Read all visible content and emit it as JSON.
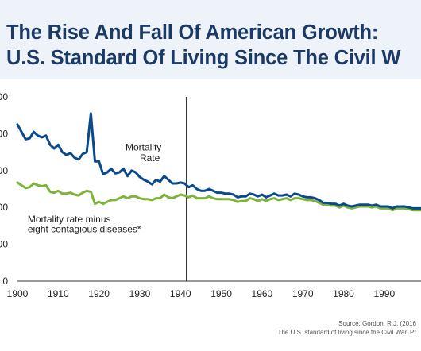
{
  "header": {
    "title_line1": "The Rise And Fall Of American Growth:",
    "title_line2": "U.S. Standard Of Living Since The Civil W"
  },
  "colors": {
    "header_bg": "#eef3fa",
    "title": "#1b3a66",
    "series_mortality": "#0a4a8c",
    "series_adjusted": "#7db33a",
    "marker_line": "#111111"
  },
  "source": {
    "line1": "Source: Gordon, R.J. (2016",
    "line2": "The U.S. standard of living since the Civil War. Pr"
  },
  "chart_data": {
    "type": "line",
    "xlim": [
      1900,
      1999
    ],
    "ylim": [
      0,
      100
    ],
    "x_ticks": [
      1900,
      1910,
      1920,
      1930,
      1940,
      1950,
      1960,
      1970,
      1980,
      1990
    ],
    "y_tick_labels": [
      "0",
      "00",
      "00",
      "00",
      "00",
      "00"
    ],
    "grid": false,
    "vertical_marker_x": 1941.5,
    "annotations": [
      {
        "text": "Mortality",
        "x": 1926.5,
        "y": 71
      },
      {
        "text": "Rate",
        "x": 1930,
        "y": 65
      },
      {
        "text": "Mortality rate minus",
        "x": 1902.5,
        "y": 32
      },
      {
        "text": "eight contagious diseases*",
        "x": 1902.5,
        "y": 26.5
      }
    ],
    "series": [
      {
        "key": "mortality",
        "color": "#0a4a8c",
        "points": [
          [
            1900,
            85
          ],
          [
            1901,
            81
          ],
          [
            1902,
            77
          ],
          [
            1903,
            77.5
          ],
          [
            1904,
            81
          ],
          [
            1905,
            79
          ],
          [
            1906,
            78
          ],
          [
            1907,
            79
          ],
          [
            1908,
            74
          ],
          [
            1909,
            72
          ],
          [
            1910,
            74
          ],
          [
            1911,
            70
          ],
          [
            1912,
            68.5
          ],
          [
            1913,
            69.5
          ],
          [
            1914,
            67
          ],
          [
            1915,
            66
          ],
          [
            1916,
            69
          ],
          [
            1917,
            70
          ],
          [
            1918,
            91
          ],
          [
            1919,
            65
          ],
          [
            1920,
            65
          ],
          [
            1921,
            58
          ],
          [
            1922,
            59
          ],
          [
            1923,
            61
          ],
          [
            1924,
            58.5
          ],
          [
            1925,
            59
          ],
          [
            1926,
            61
          ],
          [
            1927,
            57
          ],
          [
            1928,
            60
          ],
          [
            1929,
            59
          ],
          [
            1930,
            56.5
          ],
          [
            1931,
            55
          ],
          [
            1932,
            54
          ],
          [
            1933,
            52.5
          ],
          [
            1934,
            55
          ],
          [
            1935,
            54
          ],
          [
            1936,
            57
          ],
          [
            1937,
            55
          ],
          [
            1938,
            53
          ],
          [
            1939,
            53
          ],
          [
            1940,
            53.5
          ],
          [
            1941,
            53
          ],
          [
            1942,
            51
          ],
          [
            1943,
            52
          ],
          [
            1944,
            50
          ],
          [
            1945,
            49
          ],
          [
            1946,
            49
          ],
          [
            1947,
            50
          ],
          [
            1948,
            49
          ],
          [
            1949,
            48
          ],
          [
            1950,
            48
          ],
          [
            1951,
            47.5
          ],
          [
            1952,
            47.5
          ],
          [
            1953,
            47
          ],
          [
            1954,
            45.5
          ],
          [
            1955,
            46
          ],
          [
            1956,
            46
          ],
          [
            1957,
            47.5
          ],
          [
            1958,
            47
          ],
          [
            1959,
            46
          ],
          [
            1960,
            47
          ],
          [
            1961,
            45.5
          ],
          [
            1962,
            46.5
          ],
          [
            1963,
            47.5
          ],
          [
            1964,
            46.5
          ],
          [
            1965,
            46.5
          ],
          [
            1966,
            47
          ],
          [
            1967,
            46
          ],
          [
            1968,
            47.5
          ],
          [
            1969,
            47
          ],
          [
            1970,
            46
          ],
          [
            1971,
            45.5
          ],
          [
            1972,
            45.5
          ],
          [
            1973,
            45
          ],
          [
            1974,
            44
          ],
          [
            1975,
            42.5
          ],
          [
            1976,
            42.5
          ],
          [
            1977,
            42
          ],
          [
            1978,
            42
          ],
          [
            1979,
            41
          ],
          [
            1980,
            42
          ],
          [
            1981,
            41
          ],
          [
            1982,
            40.5
          ],
          [
            1983,
            41
          ],
          [
            1984,
            41.5
          ],
          [
            1985,
            41.5
          ],
          [
            1986,
            41.5
          ],
          [
            1987,
            41
          ],
          [
            1988,
            41.5
          ],
          [
            1989,
            40.5
          ],
          [
            1990,
            40.5
          ],
          [
            1991,
            40.5
          ],
          [
            1992,
            39.5
          ],
          [
            1993,
            40.5
          ],
          [
            1994,
            40.5
          ],
          [
            1995,
            40.5
          ],
          [
            1996,
            40
          ],
          [
            1997,
            39.5
          ],
          [
            1998,
            39.5
          ],
          [
            1999,
            39.5
          ]
        ]
      },
      {
        "key": "adjusted",
        "color": "#7db33a",
        "points": [
          [
            1900,
            53.5
          ],
          [
            1901,
            52
          ],
          [
            1902,
            50.5
          ],
          [
            1903,
            51
          ],
          [
            1904,
            53
          ],
          [
            1905,
            52
          ],
          [
            1906,
            51.5
          ],
          [
            1907,
            52
          ],
          [
            1908,
            48.5
          ],
          [
            1909,
            48
          ],
          [
            1910,
            49
          ],
          [
            1911,
            47.5
          ],
          [
            1912,
            47.5
          ],
          [
            1913,
            48
          ],
          [
            1914,
            47
          ],
          [
            1915,
            46.5
          ],
          [
            1916,
            48
          ],
          [
            1917,
            49
          ],
          [
            1918,
            48.5
          ],
          [
            1919,
            42
          ],
          [
            1920,
            43
          ],
          [
            1921,
            42
          ],
          [
            1922,
            43
          ],
          [
            1923,
            44
          ],
          [
            1924,
            44
          ],
          [
            1925,
            45
          ],
          [
            1926,
            46
          ],
          [
            1927,
            45
          ],
          [
            1928,
            46
          ],
          [
            1929,
            46
          ],
          [
            1930,
            45
          ],
          [
            1931,
            44.5
          ],
          [
            1932,
            44.5
          ],
          [
            1933,
            44
          ],
          [
            1934,
            45
          ],
          [
            1935,
            45
          ],
          [
            1936,
            47
          ],
          [
            1937,
            45.5
          ],
          [
            1938,
            45
          ],
          [
            1939,
            46
          ],
          [
            1940,
            47
          ],
          [
            1941,
            46.5
          ],
          [
            1942,
            45.5
          ],
          [
            1943,
            46.5
          ],
          [
            1944,
            45
          ],
          [
            1945,
            45
          ],
          [
            1946,
            45
          ],
          [
            1947,
            46
          ],
          [
            1948,
            45
          ],
          [
            1949,
            44.5
          ],
          [
            1950,
            44.5
          ],
          [
            1951,
            44.5
          ],
          [
            1952,
            44.5
          ],
          [
            1953,
            44
          ],
          [
            1954,
            43
          ],
          [
            1955,
            43.5
          ],
          [
            1956,
            43.5
          ],
          [
            1957,
            45
          ],
          [
            1958,
            44.5
          ],
          [
            1959,
            43.5
          ],
          [
            1960,
            44.5
          ],
          [
            1961,
            43.5
          ],
          [
            1962,
            44.5
          ],
          [
            1963,
            45
          ],
          [
            1964,
            44
          ],
          [
            1965,
            44.5
          ],
          [
            1966,
            45
          ],
          [
            1967,
            44
          ],
          [
            1968,
            45
          ],
          [
            1969,
            45
          ],
          [
            1970,
            44.5
          ],
          [
            1971,
            44
          ],
          [
            1972,
            44
          ],
          [
            1973,
            43.5
          ],
          [
            1974,
            42.5
          ],
          [
            1975,
            41.5
          ],
          [
            1976,
            41.5
          ],
          [
            1977,
            41
          ],
          [
            1978,
            41
          ],
          [
            1979,
            40
          ],
          [
            1980,
            41
          ],
          [
            1981,
            40
          ],
          [
            1982,
            39.5
          ],
          [
            1983,
            40
          ],
          [
            1984,
            40.5
          ],
          [
            1985,
            40.5
          ],
          [
            1986,
            40.5
          ],
          [
            1987,
            40
          ],
          [
            1988,
            40.5
          ],
          [
            1989,
            39.5
          ],
          [
            1990,
            39.5
          ],
          [
            1991,
            39.5
          ],
          [
            1992,
            38.5
          ],
          [
            1993,
            39.5
          ],
          [
            1994,
            39.5
          ],
          [
            1995,
            39.5
          ],
          [
            1996,
            39
          ],
          [
            1997,
            38.5
          ],
          [
            1998,
            38.5
          ],
          [
            1999,
            38.5
          ]
        ]
      }
    ]
  }
}
